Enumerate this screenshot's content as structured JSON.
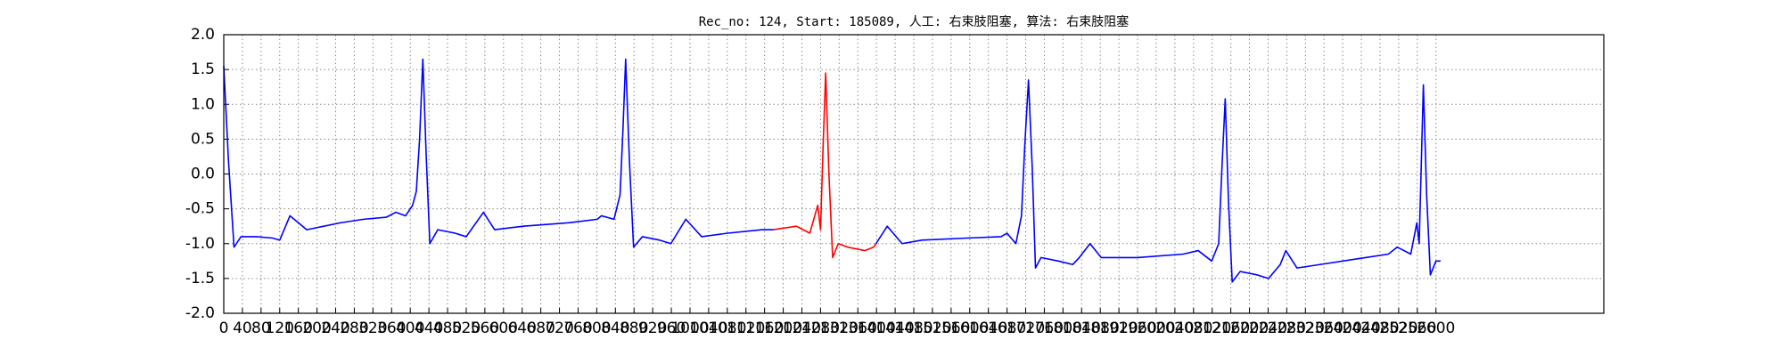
{
  "chart_data": {
    "type": "line",
    "title": "Rec_no: 124, Start: 185089, 人工: 右束肢阻塞, 算法: 右束肢阻塞",
    "xlim": [
      0,
      2960
    ],
    "ylim": [
      -2,
      2
    ],
    "xticks": [
      0,
      40,
      80,
      120,
      160,
      200,
      240,
      280,
      320,
      360,
      400,
      440,
      480,
      520,
      560,
      600,
      640,
      680,
      720,
      760,
      800,
      840,
      880,
      920,
      960,
      1000,
      1040,
      1080,
      1120,
      1160,
      1200,
      1240,
      1280,
      1320,
      1360,
      1400,
      1440,
      1480,
      1520,
      1560,
      1600,
      1640,
      1680,
      1720,
      1760,
      1800,
      1840,
      1880,
      1920,
      1960,
      2000,
      2040,
      2080,
      2120,
      2160,
      2200,
      2240,
      2280,
      2320,
      2360,
      2400,
      2440,
      2480,
      2520,
      2560,
      2600
    ],
    "yticks": [
      {
        "value": -2,
        "label": "-2.0"
      },
      -1.5,
      {
        "value": -1,
        "label": "-1.0"
      },
      -0.5,
      {
        "value": 0,
        "label": "0.0"
      },
      0.5,
      {
        "value": 1,
        "label": "1.0"
      },
      1.5,
      {
        "value": 2,
        "label": "2.0"
      }
    ],
    "grid": true,
    "series": [
      {
        "color": "#0000ff",
        "x": [
          0,
          10,
          22,
          37,
          70,
          105,
          120,
          142,
          160,
          178,
          251,
          300,
          349,
          369,
          390,
          405,
          413,
          420,
          427,
          434,
          442,
          459,
          496,
          520,
          557,
          581,
          642,
          740,
          801,
          810,
          837,
          850,
          856,
          862,
          870,
          879,
          898,
          935,
          959,
          991,
          1025,
          1081,
          1155,
          1179,
          null,
          1399,
          1423,
          1455,
          1497,
          1594,
          1667,
          1680,
          1699,
          1711,
          1718,
          1726,
          1734,
          1741,
          1753,
          1790,
          1821,
          1835,
          1858,
          1882,
          1960,
          2058,
          2090,
          2119,
          2134,
          2141,
          2148,
          2155,
          2163,
          2180,
          2217,
          2241,
          2266,
          2278,
          2302,
          2351,
          2449,
          2498,
          2517,
          2546,
          2559,
          2564,
          2573,
          2580,
          2588,
          2600,
          2610
        ],
        "values": [
          1.55,
          0.2,
          -1.05,
          -0.9,
          -0.9,
          -0.92,
          -0.95,
          -0.6,
          -0.7,
          -0.8,
          -0.7,
          -0.65,
          -0.62,
          -0.55,
          -0.6,
          -0.45,
          -0.25,
          0.5,
          1.65,
          0.3,
          -1.0,
          -0.8,
          -0.85,
          -0.9,
          -0.55,
          -0.8,
          -0.75,
          -0.7,
          -0.65,
          -0.6,
          -0.65,
          -0.3,
          0.6,
          1.65,
          0.2,
          -1.05,
          -0.9,
          -0.95,
          -1.0,
          -0.65,
          -0.9,
          -0.85,
          -0.8,
          -0.8,
          null,
          -1.0,
          -0.75,
          -1.0,
          -0.95,
          -0.92,
          -0.9,
          -0.85,
          -1.0,
          -0.6,
          0.4,
          1.35,
          0.1,
          -1.35,
          -1.2,
          -1.25,
          -1.3,
          -1.2,
          -1.0,
          -1.2,
          -1.2,
          -1.15,
          -1.1,
          -1.25,
          -1.0,
          0.1,
          1.08,
          -0.4,
          -1.55,
          -1.4,
          -1.45,
          -1.5,
          -1.3,
          -1.1,
          -1.35,
          -1.3,
          -1.2,
          -1.15,
          -1.05,
          -1.15,
          -0.7,
          -1.0,
          1.28,
          -0.3,
          -1.45,
          -1.25,
          -1.25
        ]
      },
      {
        "color": "#ff0000",
        "x": [
          1179,
          1228,
          1257,
          1274,
          1280,
          1285,
          1291,
          1298,
          1306,
          1318,
          1338,
          1375,
          1394,
          1399
        ],
        "values": [
          -0.8,
          -0.75,
          -0.85,
          -0.45,
          -0.8,
          0.3,
          1.45,
          0.0,
          -1.2,
          -1.0,
          -1.05,
          -1.1,
          -1.05,
          -1.0
        ]
      }
    ]
  }
}
